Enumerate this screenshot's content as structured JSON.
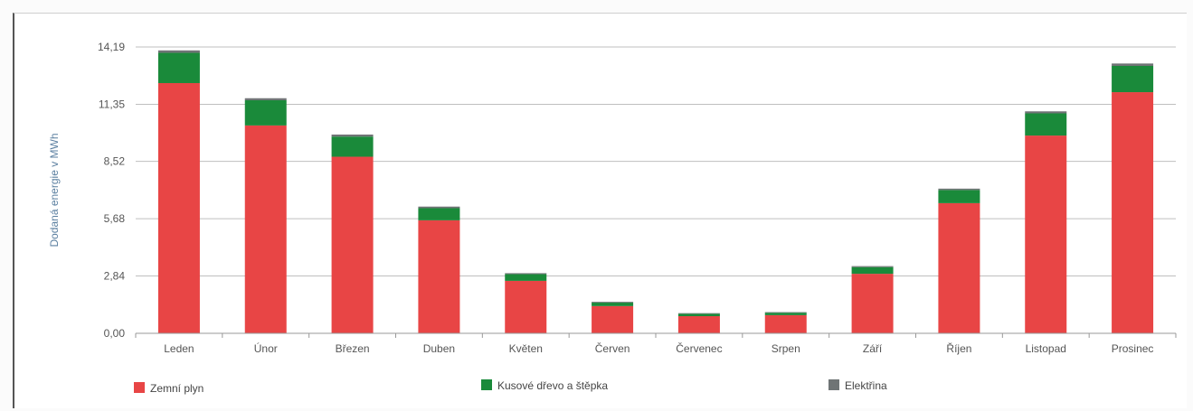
{
  "chart_data": {
    "type": "bar",
    "stacked": true,
    "title": "",
    "xlabel": "",
    "ylabel": "Dodaná energie v MWh",
    "ylim": [
      0,
      14.19
    ],
    "yticks": [
      "0,00",
      "2,84",
      "5,68",
      "8,52",
      "11,35",
      "14,19"
    ],
    "ytick_values": [
      0,
      2.84,
      5.68,
      8.52,
      11.35,
      14.19
    ],
    "grid": true,
    "legend": "bottom",
    "categories": [
      "Leden",
      "Únor",
      "Březen",
      "Duben",
      "Květen",
      "Červen",
      "Červenec",
      "Srpen",
      "Září",
      "Říjen",
      "Listopad",
      "Prosinec"
    ],
    "series": [
      {
        "name": "Zemní plyn",
        "color": "#e84545",
        "values": [
          12.4,
          10.3,
          8.75,
          5.6,
          2.6,
          1.35,
          0.85,
          0.9,
          2.95,
          6.45,
          9.8,
          11.95
        ]
      },
      {
        "name": "Kusové dřevo a štěpka",
        "color": "#1a8a3a",
        "values": [
          1.5,
          1.25,
          1.0,
          0.6,
          0.33,
          0.17,
          0.12,
          0.12,
          0.33,
          0.65,
          1.1,
          1.3
        ]
      },
      {
        "name": "Elektřina",
        "color": "#6f7475",
        "values": [
          0.12,
          0.1,
          0.1,
          0.08,
          0.05,
          0.04,
          0.03,
          0.03,
          0.05,
          0.07,
          0.1,
          0.12
        ]
      }
    ]
  }
}
